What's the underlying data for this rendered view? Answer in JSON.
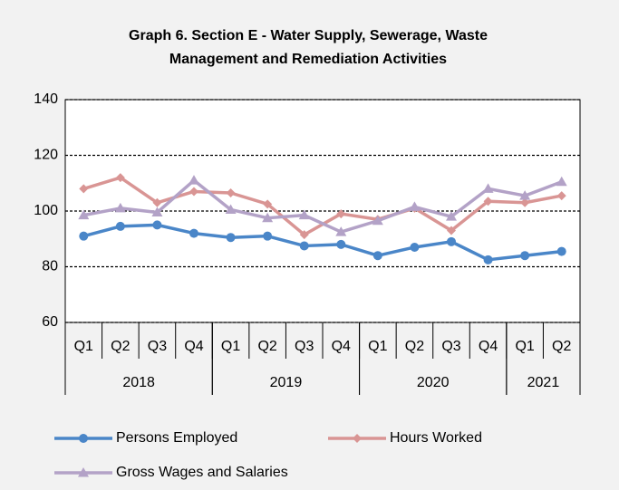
{
  "chart_data": {
    "type": "line",
    "title_lines": [
      "Graph 6. Section E - Water Supply, Sewerage, Waste",
      "Management and Remediation Activities"
    ],
    "categories": [
      "Q1",
      "Q2",
      "Q3",
      "Q4",
      "Q1",
      "Q2",
      "Q3",
      "Q4",
      "Q1",
      "Q2",
      "Q3",
      "Q4",
      "Q1",
      "Q2"
    ],
    "year_groups": [
      {
        "name": "2018",
        "span": 4
      },
      {
        "name": "2019",
        "span": 4
      },
      {
        "name": "2020",
        "span": 4
      },
      {
        "name": "2021",
        "span": 2
      }
    ],
    "series": [
      {
        "name": "Persons Employed",
        "color": "#4a86c8",
        "marker": "circle",
        "values": [
          91,
          94.5,
          95,
          92,
          90.5,
          91,
          87.5,
          88,
          84,
          87,
          89,
          82.5,
          84,
          85.5
        ]
      },
      {
        "name": "Hours Worked",
        "color": "#d99594",
        "marker": "diamond",
        "values": [
          108,
          112,
          103,
          107,
          106.5,
          102.5,
          91.5,
          99,
          97,
          101,
          93,
          103.5,
          103,
          105.5
        ]
      },
      {
        "name": "Gross Wages and Salaries",
        "color": "#b3a2c7",
        "marker": "triangle",
        "values": [
          98.5,
          101,
          99.5,
          111,
          100.5,
          97.5,
          98.5,
          92.5,
          96.5,
          101.5,
          98,
          108,
          105.5,
          110.5
        ]
      }
    ],
    "ylim": [
      60,
      140
    ],
    "yticks": [
      60,
      80,
      100,
      120,
      140
    ],
    "grid": true
  }
}
